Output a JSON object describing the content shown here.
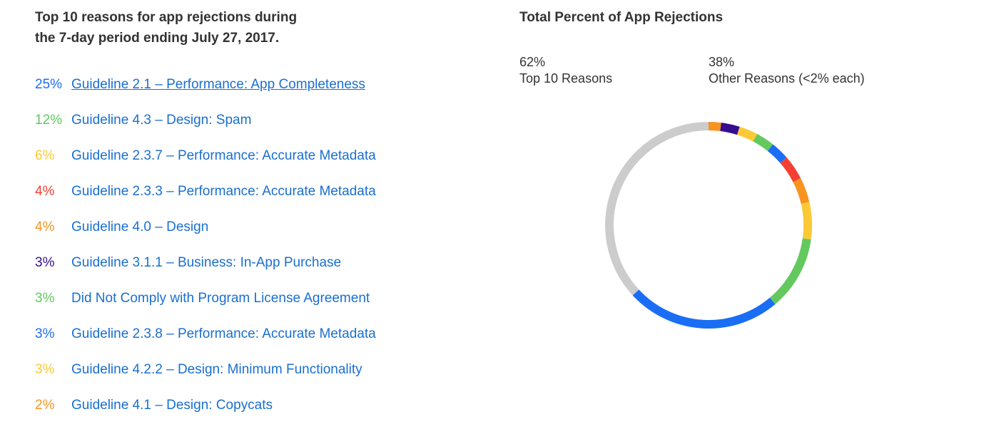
{
  "headline": {
    "line1": "Top 10 reasons for app rejections during",
    "line2": "the 7-day period ending July 27, 2017."
  },
  "colors": {
    "blue": "#1a6ef5",
    "green": "#63c95f",
    "yellow": "#fbc935",
    "red": "#f44032",
    "orange": "#f7931e",
    "purple": "#340e8f",
    "gray": "#cccccc",
    "link": "#1a6fd0"
  },
  "reasons": [
    {
      "percent": "25%",
      "label": "Guideline 2.1 – Performance: App Completeness",
      "color": "#1a6ef5",
      "underlined": true
    },
    {
      "percent": "12%",
      "label": "Guideline 4.3 – Design: Spam",
      "color": "#63c95f",
      "underlined": false
    },
    {
      "percent": "6%",
      "label": "Guideline 2.3.7 – Performance: Accurate Metadata",
      "color": "#fbc935",
      "underlined": false
    },
    {
      "percent": "4%",
      "label": "Guideline 2.3.3 – Performance: Accurate Metadata",
      "color": "#f44032",
      "underlined": false
    },
    {
      "percent": "4%",
      "label": "Guideline 4.0 – Design",
      "color": "#f7931e",
      "underlined": false
    },
    {
      "percent": "3%",
      "label": "Guideline 3.1.1 – Business: In-App Purchase",
      "color": "#340e8f",
      "underlined": false
    },
    {
      "percent": "3%",
      "label": "Did Not Comply with Program License Agreement",
      "color": "#63c95f",
      "underlined": false
    },
    {
      "percent": "3%",
      "label": "Guideline 2.3.8 – Performance: Accurate Metadata",
      "color": "#1a6ef5",
      "underlined": false
    },
    {
      "percent": "3%",
      "label": "Guideline 4.2.2 – Design: Minimum Functionality",
      "color": "#fbc935",
      "underlined": false
    },
    {
      "percent": "2%",
      "label": "Guideline 4.1 – Design: Copycats",
      "color": "#f7931e",
      "underlined": false
    }
  ],
  "chart_data": {
    "type": "pie",
    "variant": "donut",
    "title": "Total Percent of App Rejections",
    "summary": {
      "top": {
        "percent": "62%",
        "label": "Top 10 Reasons"
      },
      "other": {
        "percent": "38%",
        "label": "Other Reasons (<2% each)"
      }
    },
    "start_angle_deg": 0,
    "direction": "counterclockwise",
    "slices": [
      {
        "value": 38,
        "color": "#cccccc"
      },
      {
        "value": 25,
        "color": "#1a6ef5"
      },
      {
        "value": 12,
        "color": "#63c95f"
      },
      {
        "value": 6,
        "color": "#fbc935"
      },
      {
        "value": 4,
        "color": "#f7931e"
      },
      {
        "value": 4,
        "color": "#f44032"
      },
      {
        "value": 3,
        "color": "#1a6ef5"
      },
      {
        "value": 3,
        "color": "#63c95f"
      },
      {
        "value": 3,
        "color": "#fbc935"
      },
      {
        "value": 3,
        "color": "#340e8f"
      },
      {
        "value": 2,
        "color": "#f7931e"
      }
    ]
  }
}
